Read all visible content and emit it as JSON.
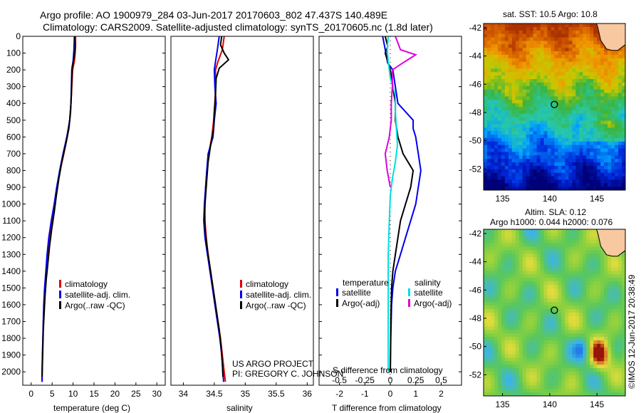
{
  "header": {
    "title_line1": "Argo profile: AO 1900979_284 03-Jun-2017 20170603_802 47.437S 140.489E",
    "title_line2": "Climatology: CARS2009. Satellite-adjusted climatology: synTS_20170605.nc (1.8d later)"
  },
  "credit": {
    "line1": "US ARGO PROJECT",
    "line2": "PI: GREGORY C. JOHNSON"
  },
  "watermark": "©IMOS 12-Jun-2017 20:38:49",
  "colors": {
    "climatology": "#dd0000",
    "satellite": "#0000ee",
    "argo": "#000000",
    "sal_satellite": "#00dddd",
    "sal_argo": "#dd00dd"
  },
  "chart_data": [
    {
      "type": "line",
      "id": "temperature",
      "xlabel": "temperature (deg C)",
      "ylabel": "",
      "xlim": [
        -2,
        32
      ],
      "ylim": [
        2080,
        0
      ],
      "xticks": [
        0,
        5,
        10,
        15,
        20,
        25,
        30
      ],
      "yticks": [
        0,
        100,
        200,
        300,
        400,
        500,
        600,
        700,
        800,
        900,
        1000,
        1100,
        1200,
        1300,
        1400,
        1500,
        1600,
        1700,
        1800,
        1900,
        2000
      ],
      "legend": [
        "climatology",
        "satellite-adj. clim.",
        "Argo(..raw -QC)"
      ],
      "series": [
        {
          "name": "climatology",
          "color": "#dd0000",
          "points": [
            [
              10.6,
              0
            ],
            [
              10.6,
              60
            ],
            [
              10.5,
              100
            ],
            [
              10.3,
              150
            ],
            [
              9.9,
              200
            ],
            [
              9.7,
              300
            ],
            [
              9.5,
              400
            ],
            [
              9.2,
              500
            ],
            [
              8.6,
              600
            ],
            [
              7.8,
              700
            ],
            [
              6.9,
              800
            ],
            [
              6.2,
              900
            ],
            [
              5.6,
              1000
            ],
            [
              5.0,
              1100
            ],
            [
              4.4,
              1200
            ],
            [
              4.0,
              1300
            ],
            [
              3.6,
              1400
            ],
            [
              3.3,
              1500
            ],
            [
              3.1,
              1600
            ],
            [
              2.9,
              1700
            ],
            [
              2.8,
              1800
            ],
            [
              2.7,
              1900
            ],
            [
              2.6,
              2000
            ],
            [
              2.6,
              2060
            ]
          ]
        },
        {
          "name": "satellite-adj. clim.",
          "color": "#0000ee",
          "points": [
            [
              10.3,
              0
            ],
            [
              10.2,
              80
            ],
            [
              10.0,
              150
            ],
            [
              9.7,
              200
            ],
            [
              9.6,
              300
            ],
            [
              9.5,
              400
            ],
            [
              9.2,
              500
            ],
            [
              8.5,
              600
            ],
            [
              7.6,
              700
            ],
            [
              6.8,
              800
            ],
            [
              6.1,
              900
            ],
            [
              5.5,
              1000
            ],
            [
              4.8,
              1100
            ],
            [
              4.2,
              1200
            ],
            [
              3.8,
              1300
            ],
            [
              3.5,
              1400
            ],
            [
              3.2,
              1500
            ],
            [
              3.0,
              1600
            ],
            [
              2.9,
              1700
            ],
            [
              2.8,
              1800
            ],
            [
              2.7,
              1900
            ],
            [
              2.6,
              2000
            ],
            [
              2.6,
              2060
            ]
          ]
        },
        {
          "name": "Argo(..raw -QC)",
          "color": "#000000",
          "points": [
            [
              10.4,
              0
            ],
            [
              10.5,
              60
            ],
            [
              10.3,
              120
            ],
            [
              9.8,
              180
            ],
            [
              9.7,
              250
            ],
            [
              9.6,
              350
            ],
            [
              9.4,
              450
            ],
            [
              9.0,
              550
            ],
            [
              8.2,
              650
            ],
            [
              7.3,
              750
            ],
            [
              6.6,
              850
            ],
            [
              6.0,
              950
            ],
            [
              5.5,
              1050
            ],
            [
              4.9,
              1150
            ],
            [
              4.4,
              1250
            ],
            [
              4.0,
              1350
            ],
            [
              3.6,
              1450
            ],
            [
              3.3,
              1550
            ],
            [
              3.1,
              1650
            ],
            [
              2.9,
              1750
            ],
            [
              2.8,
              1850
            ],
            [
              2.7,
              1950
            ],
            [
              2.6,
              2030
            ]
          ]
        }
      ]
    },
    {
      "type": "line",
      "id": "salinity",
      "xlabel": "salinity",
      "ylabel": "",
      "xlim": [
        33.8,
        36.1
      ],
      "ylim": [
        2080,
        0
      ],
      "xticks": [
        34,
        34.5,
        35,
        35.5,
        36
      ],
      "legend": [
        "climatology",
        "satellite-adj. clim.",
        "Argo(..raw -QC)"
      ],
      "series": [
        {
          "name": "climatology",
          "color": "#dd0000",
          "points": [
            [
              34.66,
              0
            ],
            [
              34.63,
              80
            ],
            [
              34.56,
              150
            ],
            [
              34.52,
              200
            ],
            [
              34.52,
              300
            ],
            [
              34.51,
              400
            ],
            [
              34.49,
              500
            ],
            [
              34.46,
              600
            ],
            [
              34.41,
              700
            ],
            [
              34.38,
              800
            ],
            [
              34.36,
              900
            ],
            [
              34.35,
              1000
            ],
            [
              34.35,
              1100
            ],
            [
              34.37,
              1200
            ],
            [
              34.4,
              1300
            ],
            [
              34.44,
              1400
            ],
            [
              34.48,
              1500
            ],
            [
              34.52,
              1600
            ],
            [
              34.56,
              1700
            ],
            [
              34.6,
              1800
            ],
            [
              34.63,
              1900
            ],
            [
              34.66,
              2000
            ],
            [
              34.68,
              2060
            ]
          ]
        },
        {
          "name": "satellite-adj. clim.",
          "color": "#0000ee",
          "points": [
            [
              34.58,
              0
            ],
            [
              34.55,
              80
            ],
            [
              34.52,
              150
            ],
            [
              34.5,
              200
            ],
            [
              34.51,
              300
            ],
            [
              34.53,
              400
            ],
            [
              34.5,
              500
            ],
            [
              34.48,
              600
            ],
            [
              34.44,
              650
            ],
            [
              34.4,
              700
            ],
            [
              34.38,
              800
            ],
            [
              34.36,
              900
            ],
            [
              34.34,
              1000
            ],
            [
              34.33,
              1100
            ],
            [
              34.35,
              1200
            ],
            [
              34.39,
              1300
            ],
            [
              34.43,
              1400
            ],
            [
              34.47,
              1500
            ],
            [
              34.51,
              1600
            ],
            [
              34.55,
              1700
            ],
            [
              34.59,
              1800
            ],
            [
              34.62,
              1900
            ],
            [
              34.64,
              2000
            ],
            [
              34.65,
              2060
            ]
          ]
        },
        {
          "name": "Argo(..raw -QC)",
          "color": "#000000",
          "points": [
            [
              34.62,
              0
            ],
            [
              34.6,
              50
            ],
            [
              34.66,
              100
            ],
            [
              34.73,
              140
            ],
            [
              34.58,
              190
            ],
            [
              34.53,
              250
            ],
            [
              34.52,
              350
            ],
            [
              34.5,
              450
            ],
            [
              34.49,
              550
            ],
            [
              34.44,
              650
            ],
            [
              34.4,
              750
            ],
            [
              34.38,
              850
            ],
            [
              34.36,
              950
            ],
            [
              34.34,
              1050
            ],
            [
              34.35,
              1150
            ],
            [
              34.38,
              1250
            ],
            [
              34.42,
              1350
            ],
            [
              34.46,
              1450
            ],
            [
              34.5,
              1550
            ],
            [
              34.54,
              1650
            ],
            [
              34.58,
              1750
            ],
            [
              34.61,
              1850
            ],
            [
              34.63,
              1950
            ],
            [
              34.64,
              2030
            ]
          ]
        }
      ]
    },
    {
      "type": "line",
      "id": "difference",
      "xlabel": "T difference from climatology",
      "xlabel2": "S difference from climatology",
      "xlim": [
        -2.8,
        2.8
      ],
      "xlim2": [
        -0.7,
        0.7
      ],
      "ylim": [
        2080,
        0
      ],
      "xticks": [
        -2,
        -1,
        0,
        1,
        2
      ],
      "xticks2": [
        "-0.5",
        "-0.25",
        "0",
        "0.25",
        "0.5"
      ],
      "legend_left_title": "temperature",
      "legend_right_title": "salinity",
      "legend_left": [
        "satellite",
        "Argo(-adj)"
      ],
      "legend_right": [
        "satellite",
        "Argo(-adj)"
      ],
      "series": [
        {
          "name": "temperature satellite",
          "color": "#0000ee",
          "axis": "T",
          "points": [
            [
              -0.3,
              0
            ],
            [
              -0.2,
              80
            ],
            [
              -0.1,
              160
            ],
            [
              0.1,
              200
            ],
            [
              0.2,
              300
            ],
            [
              0.3,
              400
            ],
            [
              0.6,
              450
            ],
            [
              0.9,
              500
            ],
            [
              0.9,
              550
            ],
            [
              1.0,
              600
            ],
            [
              1.1,
              700
            ],
            [
              1.2,
              800
            ],
            [
              1.1,
              900
            ],
            [
              1.0,
              1000
            ],
            [
              0.8,
              1100
            ],
            [
              0.6,
              1200
            ],
            [
              0.4,
              1300
            ],
            [
              0.2,
              1400
            ],
            [
              0.1,
              1500
            ],
            [
              0.05,
              1600
            ],
            [
              0.02,
              1800
            ],
            [
              0.0,
              2000
            ]
          ]
        },
        {
          "name": "temperature Argo(-adj)",
          "color": "#000000",
          "axis": "T",
          "points": [
            [
              -0.2,
              0
            ],
            [
              -0.1,
              60
            ],
            [
              -0.2,
              100
            ],
            [
              -0.1,
              150
            ],
            [
              0.0,
              200
            ],
            [
              0.1,
              300
            ],
            [
              0.2,
              400
            ],
            [
              0.2,
              500
            ],
            [
              0.3,
              600
            ],
            [
              0.5,
              700
            ],
            [
              0.9,
              800
            ],
            [
              0.8,
              900
            ],
            [
              0.6,
              1000
            ],
            [
              0.4,
              1100
            ],
            [
              0.3,
              1200
            ],
            [
              0.2,
              1300
            ],
            [
              0.1,
              1400
            ],
            [
              0.05,
              1500
            ],
            [
              0.02,
              1700
            ],
            [
              0.0,
              2000
            ]
          ]
        },
        {
          "name": "salinity satellite",
          "color": "#00dddd",
          "axis": "S",
          "points": [
            [
              -0.02,
              0
            ],
            [
              -0.03,
              80
            ],
            [
              -0.02,
              150
            ],
            [
              0.0,
              250
            ],
            [
              0.05,
              350
            ],
            [
              0.05,
              450
            ],
            [
              0.06,
              550
            ],
            [
              0.07,
              650
            ],
            [
              0.05,
              750
            ],
            [
              0.02,
              850
            ],
            [
              0.0,
              950
            ],
            [
              -0.01,
              1100
            ],
            [
              -0.02,
              1300
            ],
            [
              -0.02,
              1500
            ],
            [
              -0.02,
              1700
            ],
            [
              -0.02,
              1900
            ],
            [
              -0.02,
              2000
            ]
          ]
        },
        {
          "name": "salinity Argo(-adj)",
          "color": "#dd00dd",
          "axis": "S",
          "points": [
            [
              0.05,
              0
            ],
            [
              0.1,
              80
            ],
            [
              0.25,
              110
            ],
            [
              0.12,
              160
            ],
            [
              0.02,
              200
            ],
            [
              0.02,
              300
            ],
            [
              0.01,
              400
            ],
            [
              0.01,
              500
            ],
            [
              -0.01,
              600
            ],
            [
              -0.05,
              700
            ],
            [
              -0.03,
              800
            ],
            [
              0.0,
              900
            ]
          ]
        }
      ]
    },
    {
      "type": "heatmap",
      "id": "sst-map",
      "title": "sat. SST: 10.5 Argo: 10.8",
      "xlim": [
        133,
        148
      ],
      "ylim": [
        -53.5,
        -41.7
      ],
      "xticks": [
        135,
        140,
        145
      ],
      "yticks": [
        -42,
        -44,
        -46,
        -48,
        -50,
        -52
      ],
      "marker": {
        "lon": 140.489,
        "lat": -47.437
      }
    },
    {
      "type": "heatmap",
      "id": "sla-map",
      "title": "Altim. SLA: 0.12",
      "subtitle": "Argo h1000: 0.044 h2000: 0.076",
      "xlim": [
        133,
        148
      ],
      "ylim": [
        -53.5,
        -41.7
      ],
      "xticks": [
        135,
        140,
        145
      ],
      "yticks": [
        -42,
        -44,
        -46,
        -48,
        -50,
        -52
      ],
      "marker": {
        "lon": 140.489,
        "lat": -47.437
      }
    }
  ]
}
